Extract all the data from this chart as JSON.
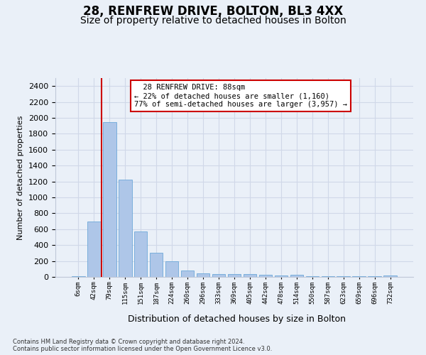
{
  "title": "28, RENFREW DRIVE, BOLTON, BL3 4XX",
  "subtitle": "Size of property relative to detached houses in Bolton",
  "xlabel": "Distribution of detached houses by size in Bolton",
  "ylabel": "Number of detached properties",
  "footnote1": "Contains HM Land Registry data © Crown copyright and database right 2024.",
  "footnote2": "Contains public sector information licensed under the Open Government Licence v3.0.",
  "annotation_line1": "28 RENFREW DRIVE: 88sqm",
  "annotation_line2": "← 22% of detached houses are smaller (1,160)",
  "annotation_line3": "77% of semi-detached houses are larger (3,957) →",
  "bar_labels": [
    "6sqm",
    "42sqm",
    "79sqm",
    "115sqm",
    "151sqm",
    "187sqm",
    "224sqm",
    "260sqm",
    "296sqm",
    "333sqm",
    "369sqm",
    "405sqm",
    "442sqm",
    "478sqm",
    "514sqm",
    "550sqm",
    "587sqm",
    "623sqm",
    "659sqm",
    "696sqm",
    "732sqm"
  ],
  "bar_values": [
    10,
    700,
    1950,
    1220,
    575,
    305,
    200,
    80,
    45,
    38,
    35,
    33,
    30,
    15,
    25,
    5,
    10,
    5,
    5,
    5,
    20
  ],
  "bar_color": "#aec6e8",
  "bar_edge_color": "#5a9fd4",
  "vline_color": "#cc0000",
  "vline_x": 1.5,
  "ylim": [
    0,
    2500
  ],
  "yticks": [
    0,
    200,
    400,
    600,
    800,
    1000,
    1200,
    1400,
    1600,
    1800,
    2000,
    2200,
    2400
  ],
  "grid_color": "#d0d8e8",
  "background_color": "#eaf0f8",
  "axes_background": "#eaf0f8",
  "annotation_box_color": "#cc0000",
  "title_fontsize": 12,
  "subtitle_fontsize": 10
}
